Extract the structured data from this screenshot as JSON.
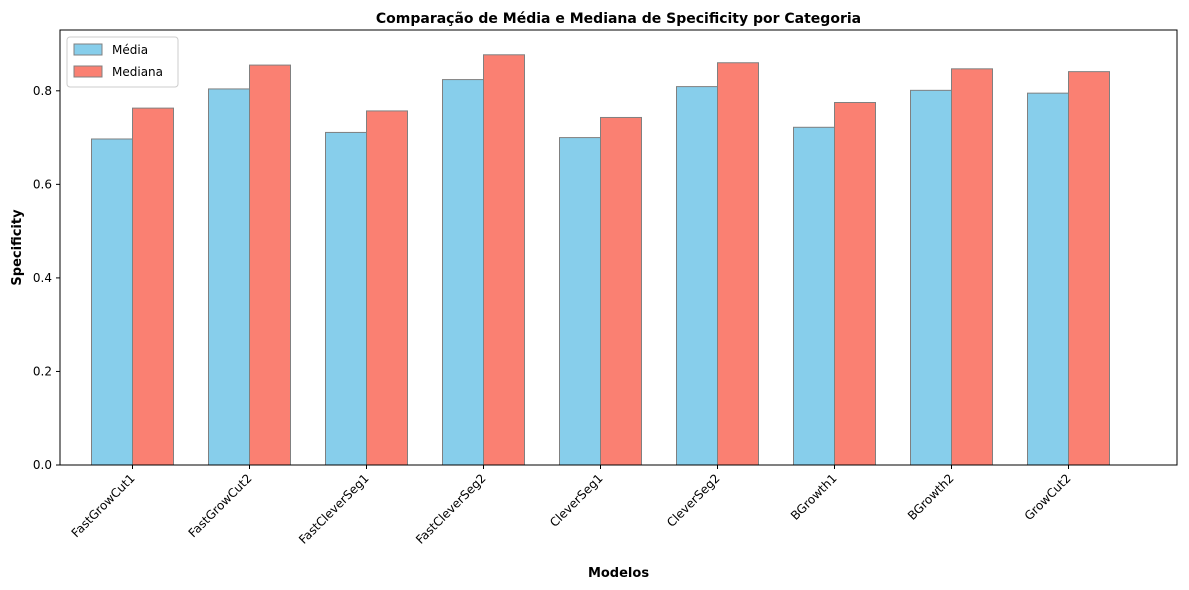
{
  "chart_data": {
    "type": "bar",
    "title": "Comparação de Média e Mediana de Specificity por Categoria",
    "xlabel": "Modelos",
    "ylabel": "Specificity",
    "categories": [
      "FastGrowCut1",
      "FastGrowCut2",
      "FastCleverSeg1",
      "FastCleverSeg2",
      "CleverSeg1",
      "CleverSeg2",
      "BGrowth1",
      "BGrowth2",
      "GrowCut2"
    ],
    "series": [
      {
        "name": "Média",
        "color": "#87ceeb",
        "values": [
          0.697,
          0.804,
          0.711,
          0.824,
          0.7,
          0.809,
          0.722,
          0.801,
          0.795
        ]
      },
      {
        "name": "Mediana",
        "color": "#fa8072",
        "values": [
          0.763,
          0.855,
          0.757,
          0.877,
          0.743,
          0.86,
          0.775,
          0.847,
          0.841
        ]
      }
    ],
    "ylim": [
      0,
      0.93
    ],
    "yticks": [
      "0.0",
      "0.2",
      "0.4",
      "0.6",
      "0.8"
    ],
    "legend_position": "top-left",
    "grid": false,
    "bar_edge_color": "#808080"
  }
}
